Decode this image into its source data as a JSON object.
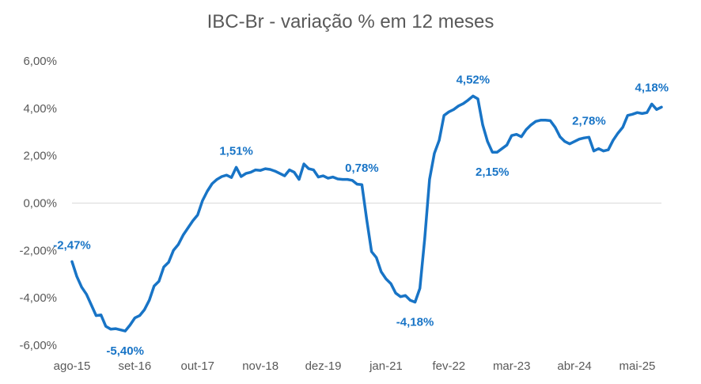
{
  "chart_data": {
    "type": "line",
    "title": "IBC-Br - variação % em 12 meses",
    "xlabel": "",
    "ylabel": "",
    "ylim": [
      -6,
      6
    ],
    "y_ticks": [
      "6,00%",
      "4,00%",
      "2,00%",
      "0,00%",
      "-2,00%",
      "-4,00%",
      "-6,00%"
    ],
    "y_tick_values": [
      6,
      4,
      2,
      0,
      -2,
      -4,
      -6
    ],
    "x_ticks": [
      "ago-15",
      "set-16",
      "out-17",
      "nov-18",
      "dez-19",
      "jan-21",
      "fev-22",
      "mar-23",
      "abr-24",
      "mai-25"
    ],
    "x_tick_index": [
      0,
      13,
      26,
      39,
      52,
      65,
      78,
      91,
      104,
      117
    ],
    "grid": "none",
    "legend": "none",
    "color": "#1874c6",
    "series": [
      {
        "values": [
          -2.47,
          -3.1,
          -3.55,
          -3.85,
          -4.3,
          -4.75,
          -4.72,
          -5.2,
          -5.32,
          -5.3,
          -5.35,
          -5.4,
          -5.15,
          -4.85,
          -4.75,
          -4.5,
          -4.1,
          -3.5,
          -3.3,
          -2.7,
          -2.5,
          -2.0,
          -1.75,
          -1.35,
          -1.05,
          -0.75,
          -0.5,
          0.1,
          0.5,
          0.82,
          1.0,
          1.12,
          1.18,
          1.08,
          1.51,
          1.12,
          1.25,
          1.3,
          1.4,
          1.38,
          1.45,
          1.42,
          1.35,
          1.25,
          1.15,
          1.4,
          1.3,
          1.0,
          1.65,
          1.45,
          1.4,
          1.1,
          1.15,
          1.05,
          1.1,
          1.02,
          1.0,
          1.0,
          0.96,
          0.8,
          0.78,
          -0.7,
          -2.05,
          -2.3,
          -2.9,
          -3.2,
          -3.4,
          -3.8,
          -3.95,
          -3.9,
          -4.1,
          -4.18,
          -3.6,
          -1.5,
          1.0,
          2.1,
          2.65,
          3.7,
          3.85,
          3.95,
          4.1,
          4.2,
          4.35,
          4.52,
          4.4,
          3.3,
          2.6,
          2.15,
          2.15,
          2.3,
          2.45,
          2.85,
          2.9,
          2.8,
          3.1,
          3.3,
          3.45,
          3.5,
          3.5,
          3.48,
          3.2,
          2.8,
          2.6,
          2.5,
          2.6,
          2.7,
          2.75,
          2.78,
          2.2,
          2.3,
          2.2,
          2.25,
          2.65,
          2.95,
          3.2,
          3.7,
          3.75,
          3.82,
          3.78,
          3.82,
          4.18,
          3.95,
          4.05
        ]
      }
    ],
    "annotations": [
      {
        "index": 0,
        "text": "-2,47%",
        "pos": "above"
      },
      {
        "index": 11,
        "text": "-5,40%",
        "pos": "below"
      },
      {
        "index": 34,
        "text": "1,51%",
        "pos": "above"
      },
      {
        "index": 60,
        "text": "0,78%",
        "pos": "above"
      },
      {
        "index": 71,
        "text": "-4,18%",
        "pos": "below"
      },
      {
        "index": 83,
        "text": "4,52%",
        "pos": "above"
      },
      {
        "index": 87,
        "text": "2,15%",
        "pos": "below"
      },
      {
        "index": 107,
        "text": "2,78%",
        "pos": "above"
      },
      {
        "index": 120,
        "text": "4,18%",
        "pos": "above"
      }
    ]
  }
}
